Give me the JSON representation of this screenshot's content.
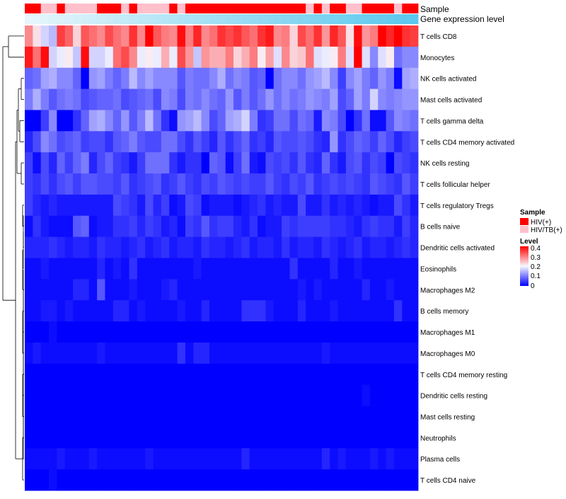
{
  "chart_data": {
    "type": "heatmap",
    "title": "",
    "annotation_tracks": [
      {
        "name": "Sample"
      },
      {
        "name": "Gene expression level"
      }
    ],
    "sample_groups": [
      "HIV(+)",
      "HIV(+)",
      "HIV/TB(+)",
      "HIV/TB(+)",
      "HIV(+)",
      "HIV/TB(+)",
      "HIV/TB(+)",
      "HIV/TB(+)",
      "HIV/TB(+)",
      "HIV(+)",
      "HIV(+)",
      "HIV(+)",
      "HIV/TB(+)",
      "HIV(+)",
      "HIV/TB(+)",
      "HIV/TB(+)",
      "HIV/TB(+)",
      "HIV/TB(+)",
      "HIV(+)",
      "HIV/TB(+)",
      "HIV(+)",
      "HIV(+)",
      "HIV(+)",
      "HIV(+)",
      "HIV(+)",
      "HIV(+)",
      "HIV(+)",
      "HIV(+)",
      "HIV(+)",
      "HIV(+)",
      "HIV(+)",
      "HIV(+)",
      "HIV(+)",
      "HIV(+)",
      "HIV(+)",
      "HIV/TB(+)",
      "HIV(+)",
      "HIV/TB(+)",
      "HIV(+)",
      "HIV(+)",
      "HIV/TB(+)",
      "HIV/TB(+)",
      "HIV(+)",
      "HIV(+)",
      "HIV(+)",
      "HIV(+)",
      "HIV/TB(+)",
      "HIV(+)",
      "HIV(+)"
    ],
    "rows": [
      "T cells CD8",
      "Monocytes",
      "NK cells activated",
      "Mast cells activated",
      "T cells gamma delta",
      "T cells CD4 memory activated",
      "NK cells resting",
      "T cells follicular helper",
      "T cells regulatory  Tregs",
      "B cells naive",
      "Dendritic cells activated",
      "Eosinophils",
      "Macrophages M2",
      "B cells memory",
      "Macrophages M1",
      "Macrophages M0",
      "T cells CD4 memory resting",
      "Dendritic cells resting",
      "Mast cells resting",
      "Neutrophils",
      "Plasma cells",
      "T cells CD4 naive"
    ],
    "values": [
      [
        0.29,
        0.22,
        0.17,
        0.15,
        0.35,
        0.32,
        0.23,
        0.33,
        0.31,
        0.29,
        0.34,
        0.31,
        0.29,
        0.36,
        0.29,
        0.4,
        0.33,
        0.3,
        0.29,
        0.39,
        0.3,
        0.37,
        0.29,
        0.31,
        0.36,
        0.34,
        0.36,
        0.33,
        0.31,
        0.36,
        0.38,
        0.29,
        0.3,
        0.23,
        0.34,
        0.31,
        0.36,
        0.28,
        0.37,
        0.33,
        0.22,
        0.39,
        0.28,
        0.3,
        0.4,
        0.37,
        0.41,
        0.36,
        0.35
      ],
      [
        0.38,
        0.31,
        0.39,
        0.17,
        0.19,
        0.21,
        0.16,
        0.39,
        0.17,
        0.17,
        0.19,
        0.31,
        0.34,
        0.29,
        0.19,
        0.21,
        0.19,
        0.26,
        0.19,
        0.34,
        0.28,
        0.16,
        0.28,
        0.26,
        0.26,
        0.3,
        0.23,
        0.26,
        0.3,
        0.21,
        0.27,
        0.18,
        0.29,
        0.23,
        0.24,
        0.31,
        0.18,
        0.19,
        0.21,
        0.3,
        0.18,
        0.4,
        0.18,
        0.11,
        0.18,
        0.21,
        0.09,
        0.11,
        0.11
      ],
      [
        0.08,
        0.09,
        0.13,
        0.14,
        0.11,
        0.11,
        0.08,
        0.0,
        0.12,
        0.13,
        0.1,
        0.08,
        0.1,
        0.15,
        0.11,
        0.13,
        0.11,
        0.11,
        0.11,
        0.07,
        0.1,
        0.09,
        0.09,
        0.11,
        0.14,
        0.09,
        0.11,
        0.1,
        0.07,
        0.08,
        0.0,
        0.09,
        0.11,
        0.11,
        0.09,
        0.12,
        0.13,
        0.15,
        0.11,
        0.05,
        0.11,
        0.13,
        0.1,
        0.08,
        0.12,
        0.1,
        0.01,
        0.13,
        0.14
      ],
      [
        0.1,
        0.14,
        0.1,
        0.07,
        0.09,
        0.1,
        0.09,
        0.06,
        0.07,
        0.08,
        0.08,
        0.09,
        0.06,
        0.07,
        0.08,
        0.09,
        0.06,
        0.11,
        0.1,
        0.06,
        0.1,
        0.09,
        0.11,
        0.09,
        0.08,
        0.12,
        0.07,
        0.1,
        0.07,
        0.09,
        0.12,
        0.09,
        0.11,
        0.09,
        0.1,
        0.12,
        0.11,
        0.1,
        0.13,
        0.06,
        0.08,
        0.13,
        0.1,
        0.17,
        0.11,
        0.1,
        0.11,
        0.12,
        0.12
      ],
      [
        0.0,
        0.0,
        0.05,
        0.11,
        0.0,
        0.0,
        0.04,
        0.08,
        0.13,
        0.14,
        0.11,
        0.08,
        0.12,
        0.07,
        0.1,
        0.15,
        0.09,
        0.04,
        0.01,
        0.12,
        0.13,
        0.15,
        0.11,
        0.06,
        0.08,
        0.13,
        0.14,
        0.17,
        0.1,
        0.04,
        0.05,
        0.09,
        0.09,
        0.06,
        0.09,
        0.08,
        0.02,
        0.11,
        0.1,
        0.06,
        0.0,
        0.04,
        0.09,
        0.01,
        0.01,
        0.07,
        0.11,
        0.1,
        0.09
      ],
      [
        0.03,
        0.06,
        0.11,
        0.09,
        0.06,
        0.07,
        0.08,
        0.05,
        0.06,
        0.06,
        0.04,
        0.07,
        0.08,
        0.1,
        0.07,
        0.06,
        0.06,
        0.09,
        0.09,
        0.06,
        0.04,
        0.07,
        0.05,
        0.03,
        0.07,
        0.04,
        0.06,
        0.08,
        0.04,
        0.05,
        0.03,
        0.07,
        0.06,
        0.06,
        0.07,
        0.06,
        0.04,
        0.03,
        0.12,
        0.04,
        0.06,
        0.08,
        0.07,
        0.05,
        0.08,
        0.06,
        0.03,
        0.05,
        0.06
      ],
      [
        0.05,
        0.01,
        0.06,
        0.03,
        0.08,
        0.05,
        0.08,
        0.1,
        0.03,
        0.06,
        0.08,
        0.05,
        0.04,
        0.02,
        0.05,
        0.09,
        0.09,
        0.09,
        0.04,
        0.02,
        0.04,
        0.04,
        0.0,
        0.08,
        0.07,
        0.01,
        0.05,
        0.09,
        0.02,
        0.01,
        0.06,
        0.05,
        0.06,
        0.04,
        0.07,
        0.04,
        0.03,
        0.08,
        0.04,
        0.02,
        0.06,
        0.07,
        0.04,
        0.06,
        0.05,
        0.0,
        0.06,
        0.05,
        0.04
      ],
      [
        0.05,
        0.04,
        0.06,
        0.04,
        0.06,
        0.07,
        0.05,
        0.07,
        0.07,
        0.06,
        0.06,
        0.05,
        0.07,
        0.04,
        0.05,
        0.06,
        0.07,
        0.04,
        0.05,
        0.07,
        0.05,
        0.04,
        0.06,
        0.05,
        0.07,
        0.06,
        0.05,
        0.06,
        0.05,
        0.05,
        0.07,
        0.05,
        0.04,
        0.06,
        0.05,
        0.07,
        0.04,
        0.05,
        0.06,
        0.05,
        0.06,
        0.05,
        0.04,
        0.07,
        0.06,
        0.05,
        0.04,
        0.07,
        0.05
      ],
      [
        0.05,
        0.03,
        0.02,
        0.03,
        0.02,
        0.02,
        0.02,
        0.02,
        0.02,
        0.02,
        0.02,
        0.06,
        0.05,
        0.04,
        0.02,
        0.06,
        0.03,
        0.05,
        0.01,
        0.02,
        0.06,
        0.05,
        0.01,
        0.02,
        0.02,
        0.02,
        0.01,
        0.02,
        0.03,
        0.04,
        0.02,
        0.03,
        0.02,
        0.02,
        0.06,
        0.02,
        0.02,
        0.04,
        0.02,
        0.03,
        0.02,
        0.03,
        0.02,
        0.01,
        0.02,
        0.02,
        0.06,
        0.04,
        0.02
      ],
      [
        0.01,
        0.04,
        0.02,
        0.01,
        0.01,
        0.01,
        0.07,
        0.08,
        0.01,
        0.02,
        0.02,
        0.04,
        0.04,
        0.05,
        0.03,
        0.05,
        0.04,
        0.02,
        0.03,
        0.01,
        0.05,
        0.04,
        0.07,
        0.04,
        0.05,
        0.05,
        0.03,
        0.02,
        0.04,
        0.01,
        0.02,
        0.02,
        0.05,
        0.04,
        0.05,
        0.05,
        0.05,
        0.05,
        0.04,
        0.04,
        0.03,
        0.02,
        0.04,
        0.05,
        0.04,
        0.04,
        0.02,
        0.05,
        0.03
      ],
      [
        0.03,
        0.03,
        0.03,
        0.04,
        0.03,
        0.02,
        0.03,
        0.03,
        0.02,
        0.04,
        0.03,
        0.03,
        0.02,
        0.03,
        0.04,
        0.02,
        0.03,
        0.04,
        0.02,
        0.03,
        0.03,
        0.02,
        0.04,
        0.03,
        0.03,
        0.02,
        0.03,
        0.04,
        0.02,
        0.03,
        0.03,
        0.02,
        0.04,
        0.02,
        0.03,
        0.03,
        0.02,
        0.04,
        0.03,
        0.02,
        0.03,
        0.04,
        0.02,
        0.03,
        0.03,
        0.02,
        0.03,
        0.04,
        0.03
      ],
      [
        0.01,
        0.01,
        0.02,
        0.01,
        0.01,
        0.01,
        0.01,
        0.01,
        0.01,
        0.03,
        0.01,
        0.02,
        0.01,
        0.04,
        0.01,
        0.01,
        0.01,
        0.01,
        0.01,
        0.01,
        0.01,
        0.02,
        0.01,
        0.01,
        0.01,
        0.01,
        0.01,
        0.01,
        0.01,
        0.01,
        0.01,
        0.01,
        0.01,
        0.04,
        0.01,
        0.01,
        0.01,
        0.01,
        0.03,
        0.01,
        0.01,
        0.02,
        0.01,
        0.01,
        0.01,
        0.01,
        0.01,
        0.01,
        0.01
      ],
      [
        0.01,
        0.01,
        0.01,
        0.01,
        0.01,
        0.01,
        0.03,
        0.03,
        0.01,
        0.07,
        0.01,
        0.01,
        0.01,
        0.02,
        0.01,
        0.01,
        0.01,
        0.02,
        0.03,
        0.01,
        0.01,
        0.01,
        0.01,
        0.01,
        0.01,
        0.01,
        0.01,
        0.01,
        0.01,
        0.01,
        0.01,
        0.01,
        0.01,
        0.01,
        0.02,
        0.01,
        0.02,
        0.01,
        0.01,
        0.01,
        0.01,
        0.01,
        0.03,
        0.01,
        0.01,
        0.02,
        0.01,
        0.01,
        0.01
      ],
      [
        0.01,
        0.01,
        0.02,
        0.02,
        0.01,
        0.02,
        0.01,
        0.01,
        0.01,
        0.01,
        0.01,
        0.03,
        0.03,
        0.01,
        0.02,
        0.01,
        0.01,
        0.01,
        0.01,
        0.02,
        0.01,
        0.01,
        0.03,
        0.01,
        0.01,
        0.01,
        0.01,
        0.04,
        0.04,
        0.04,
        0.02,
        0.01,
        0.01,
        0.01,
        0.03,
        0.01,
        0.01,
        0.01,
        0.02,
        0.01,
        0.01,
        0.01,
        0.01,
        0.01,
        0.01,
        0.01,
        0.04,
        0.01,
        0.01
      ],
      [
        0.0,
        0.0,
        0.0,
        0.01,
        0.0,
        0.0,
        0.0,
        0.0,
        0.0,
        0.0,
        0.0,
        0.0,
        0.0,
        0.0,
        0.0,
        0.0,
        0.0,
        0.0,
        0.0,
        0.0,
        0.0,
        0.0,
        0.0,
        0.0,
        0.0,
        0.0,
        0.0,
        0.0,
        0.0,
        0.0,
        0.0,
        0.0,
        0.0,
        0.0,
        0.0,
        0.0,
        0.0,
        0.0,
        0.0,
        0.0,
        0.0,
        0.0,
        0.0,
        0.0,
        0.0,
        0.0,
        0.0,
        0.0,
        0.0
      ],
      [
        0.01,
        0.02,
        0.01,
        0.01,
        0.01,
        0.01,
        0.01,
        0.01,
        0.01,
        0.02,
        0.01,
        0.01,
        0.01,
        0.01,
        0.01,
        0.01,
        0.01,
        0.01,
        0.01,
        0.04,
        0.01,
        0.03,
        0.03,
        0.01,
        0.01,
        0.01,
        0.01,
        0.01,
        0.01,
        0.01,
        0.01,
        0.01,
        0.01,
        0.01,
        0.01,
        0.01,
        0.01,
        0.02,
        0.01,
        0.01,
        0.01,
        0.01,
        0.01,
        0.01,
        0.01,
        0.01,
        0.01,
        0.01,
        0.01
      ],
      [
        0.0,
        0.0,
        0.0,
        0.0,
        0.0,
        0.0,
        0.0,
        0.0,
        0.0,
        0.0,
        0.0,
        0.0,
        0.0,
        0.0,
        0.0,
        0.0,
        0.0,
        0.0,
        0.0,
        0.0,
        0.0,
        0.0,
        0.0,
        0.0,
        0.0,
        0.0,
        0.0,
        0.0,
        0.0,
        0.0,
        0.0,
        0.0,
        0.0,
        0.0,
        0.0,
        0.0,
        0.0,
        0.0,
        0.0,
        0.0,
        0.0,
        0.0,
        0.0,
        0.0,
        0.0,
        0.0,
        0.0,
        0.0,
        0.0
      ],
      [
        0.0,
        0.0,
        0.0,
        0.0,
        0.0,
        0.0,
        0.0,
        0.0,
        0.0,
        0.0,
        0.0,
        0.0,
        0.0,
        0.0,
        0.0,
        0.0,
        0.0,
        0.0,
        0.0,
        0.0,
        0.0,
        0.0,
        0.0,
        0.0,
        0.0,
        0.0,
        0.0,
        0.0,
        0.0,
        0.0,
        0.0,
        0.0,
        0.0,
        0.0,
        0.0,
        0.0,
        0.0,
        0.0,
        0.0,
        0.0,
        0.0,
        0.0,
        0.01,
        0.0,
        0.0,
        0.0,
        0.0,
        0.0,
        0.0
      ],
      [
        0.0,
        0.0,
        0.0,
        0.0,
        0.0,
        0.0,
        0.0,
        0.0,
        0.0,
        0.0,
        0.0,
        0.0,
        0.0,
        0.0,
        0.0,
        0.0,
        0.0,
        0.0,
        0.0,
        0.0,
        0.0,
        0.0,
        0.0,
        0.0,
        0.0,
        0.0,
        0.0,
        0.0,
        0.0,
        0.0,
        0.0,
        0.0,
        0.0,
        0.0,
        0.0,
        0.0,
        0.0,
        0.0,
        0.0,
        0.0,
        0.0,
        0.0,
        0.0,
        0.0,
        0.0,
        0.0,
        0.0,
        0.0,
        0.0
      ],
      [
        0.0,
        0.0,
        0.0,
        0.0,
        0.0,
        0.0,
        0.0,
        0.0,
        0.0,
        0.0,
        0.0,
        0.0,
        0.0,
        0.0,
        0.0,
        0.0,
        0.0,
        0.0,
        0.0,
        0.0,
        0.0,
        0.0,
        0.0,
        0.0,
        0.0,
        0.0,
        0.0,
        0.0,
        0.0,
        0.0,
        0.0,
        0.0,
        0.0,
        0.0,
        0.0,
        0.0,
        0.0,
        0.0,
        0.0,
        0.0,
        0.0,
        0.0,
        0.0,
        0.0,
        0.0,
        0.0,
        0.0,
        0.0,
        0.0
      ],
      [
        0.01,
        0.01,
        0.01,
        0.01,
        0.02,
        0.01,
        0.01,
        0.01,
        0.02,
        0.01,
        0.01,
        0.01,
        0.01,
        0.01,
        0.01,
        0.02,
        0.01,
        0.01,
        0.01,
        0.01,
        0.01,
        0.01,
        0.01,
        0.01,
        0.01,
        0.01,
        0.01,
        0.03,
        0.01,
        0.01,
        0.01,
        0.01,
        0.01,
        0.01,
        0.01,
        0.01,
        0.01,
        0.03,
        0.01,
        0.02,
        0.01,
        0.01,
        0.01,
        0.02,
        0.01,
        0.02,
        0.01,
        0.01,
        0.01
      ],
      [
        0.0,
        0.0,
        0.0,
        0.01,
        0.0,
        0.0,
        0.0,
        0.0,
        0.0,
        0.0,
        0.0,
        0.0,
        0.0,
        0.0,
        0.0,
        0.0,
        0.0,
        0.0,
        0.0,
        0.0,
        0.0,
        0.0,
        0.0,
        0.0,
        0.0,
        0.0,
        0.0,
        0.0,
        0.0,
        0.0,
        0.0,
        0.0,
        0.0,
        0.0,
        0.0,
        0.0,
        0.0,
        0.0,
        0.0,
        0.0,
        0.0,
        0.0,
        0.0,
        0.0,
        0.0,
        0.0,
        0.0,
        0.0,
        0.0
      ]
    ],
    "color_scale": {
      "min": 0,
      "mid": 0.2,
      "max": 0.4,
      "low_color": "#0000ff",
      "mid_color": "#f8f8ff",
      "high_color": "#ff0000"
    },
    "legend": {
      "position": "right",
      "sample_title": "Sample",
      "sample_items": [
        {
          "label": "HIV(+)",
          "color": "#ff0000"
        },
        {
          "label": "HIV/TB(+)",
          "color": "#ffc0cb"
        }
      ],
      "level_title": "Level",
      "level_ticks": [
        "0.4",
        "0.3",
        "0.2",
        "0.1",
        "0"
      ]
    },
    "gradient_track": {
      "start_color": "#e6f6fb",
      "end_color": "#5bc8ee"
    }
  }
}
